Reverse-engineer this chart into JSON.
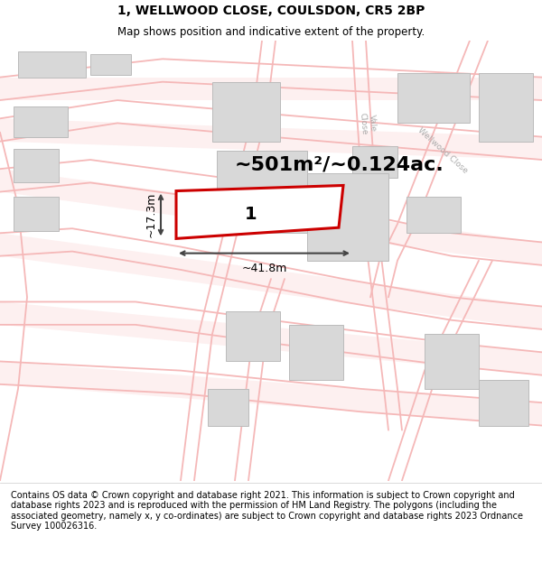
{
  "title": "1, WELLWOOD CLOSE, COULSDON, CR5 2BP",
  "subtitle": "Map shows position and indicative extent of the property.",
  "area_text": "~501m²/~0.124ac.",
  "label_number": "1",
  "dim_width": "~41.8m",
  "dim_height": "~17.3m",
  "footer": "Contains OS data © Crown copyright and database right 2021. This information is subject to Crown copyright and database rights 2023 and is reproduced with the permission of HM Land Registry. The polygons (including the associated geometry, namely x, y co-ordinates) are subject to Crown copyright and database rights 2023 Ordnance Survey 100026316.",
  "map_background": "#ffffff",
  "plot_color": "#cc0000",
  "road_color": "#f5b8b8",
  "road_fill": "#f5e8e8",
  "building_color": "#d8d8d8",
  "building_edge": "#bbbbbb",
  "road_label_color": "#aaaaaa",
  "dim_color": "#444444",
  "title_fontsize": 10,
  "subtitle_fontsize": 8.5,
  "area_fontsize": 16,
  "label_fontsize": 14,
  "dim_fontsize": 9,
  "footer_fontsize": 7
}
